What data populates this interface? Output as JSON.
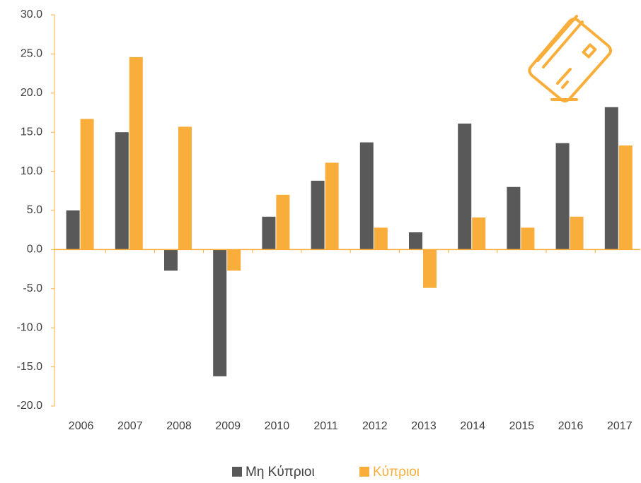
{
  "chart_data": {
    "type": "bar",
    "categories": [
      "2006",
      "2007",
      "2008",
      "2009",
      "2010",
      "2011",
      "2012",
      "2013",
      "2014",
      "2015",
      "2016",
      "2017"
    ],
    "series": [
      {
        "name": "Μη Κύπριοι",
        "color": "#595959",
        "values": [
          5.0,
          15.0,
          -2.7,
          -16.2,
          4.2,
          8.8,
          13.7,
          2.2,
          16.1,
          8.0,
          13.6,
          18.2
        ]
      },
      {
        "name": "Κύπριοι",
        "color": "#f9ae3b",
        "values": [
          16.7,
          24.6,
          15.7,
          -2.7,
          7.0,
          11.1,
          2.8,
          -4.9,
          4.1,
          2.8,
          4.2,
          13.3
        ]
      }
    ],
    "ylim": [
      -20,
      30
    ],
    "yticks": [
      {
        "value": -20,
        "label": "-20.0"
      },
      {
        "value": -15,
        "label": "-15.0"
      },
      {
        "value": -10,
        "label": "-10.0"
      },
      {
        "value": -5,
        "label": "-5.0"
      },
      {
        "value": 0,
        "label": "0.0"
      },
      {
        "value": 5,
        "label": "5.0"
      },
      {
        "value": 10,
        "label": "10.0"
      },
      {
        "value": 15,
        "label": "15.0"
      },
      {
        "value": 20,
        "label": "20.0"
      },
      {
        "value": 25,
        "label": "25.0"
      },
      {
        "value": 30,
        "label": "30.0"
      }
    ],
    "axis_color": "#f9ae3b",
    "legend": "bottom"
  }
}
